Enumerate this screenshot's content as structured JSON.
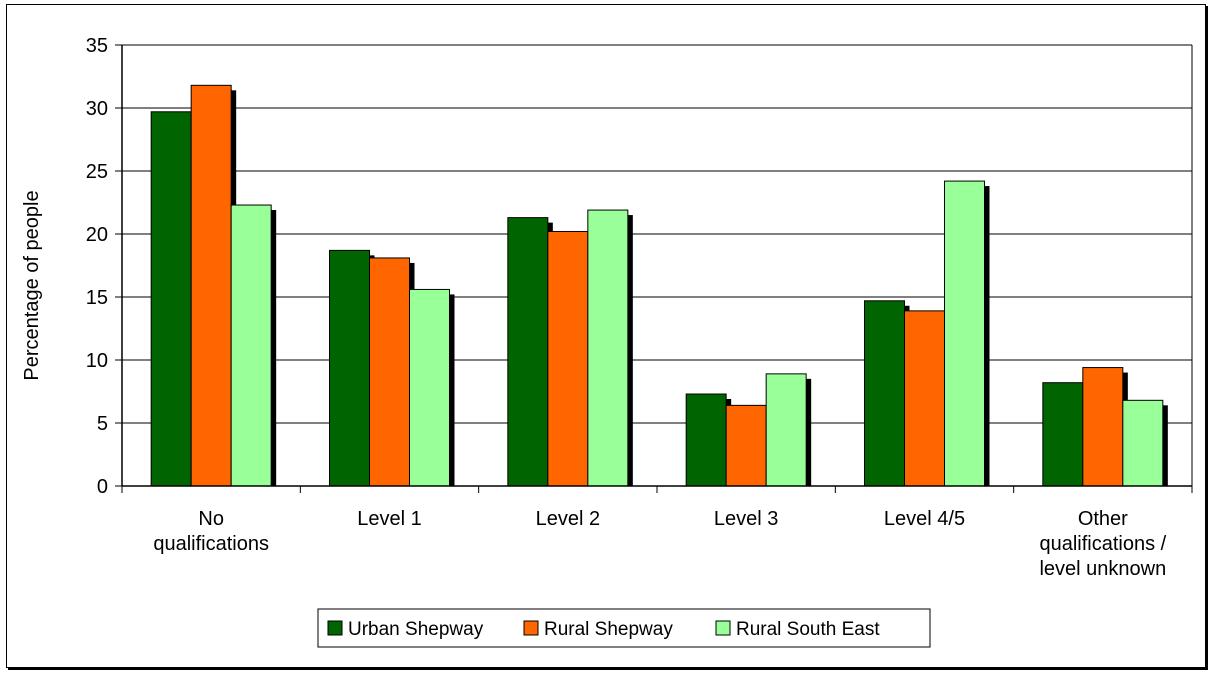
{
  "chart_data": {
    "type": "bar",
    "title": "",
    "xlabel": "",
    "ylabel": "Percentage of people",
    "ylim": [
      0,
      35
    ],
    "yticks": [
      0,
      5,
      10,
      15,
      20,
      25,
      30,
      35
    ],
    "grid": true,
    "legend_position": "bottom",
    "categories": [
      [
        "No",
        "qualifications"
      ],
      [
        "Level 1"
      ],
      [
        "Level 2"
      ],
      [
        "Level 3"
      ],
      [
        "Level 4/5"
      ],
      [
        "Other",
        "qualifications /",
        "level unknown"
      ]
    ],
    "series": [
      {
        "name": "Urban Shepway",
        "color": "#006400",
        "values": [
          29.7,
          18.7,
          21.3,
          7.3,
          14.7,
          8.2
        ]
      },
      {
        "name": "Rural Shepway",
        "color": "#FF6600",
        "values": [
          31.8,
          18.1,
          20.2,
          6.4,
          13.9,
          9.4
        ]
      },
      {
        "name": "Rural South East",
        "color": "#99FF99",
        "values": [
          22.3,
          15.6,
          21.9,
          8.9,
          24.2,
          6.8
        ]
      }
    ]
  }
}
